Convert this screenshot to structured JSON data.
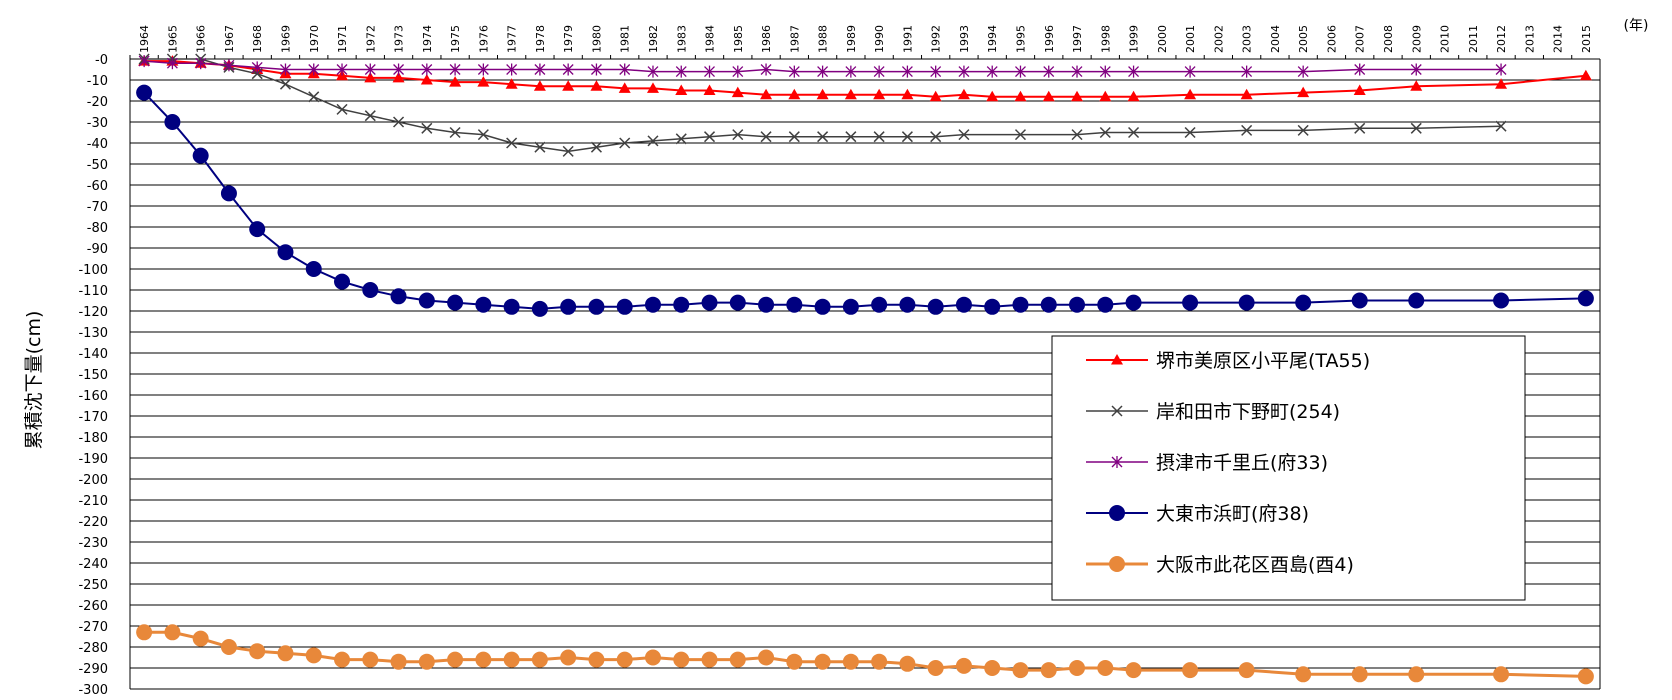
{
  "chart_data": {
    "type": "line",
    "ylabel": "累積沈下量(cm)",
    "x_unit": "(年)",
    "ylim": [
      -300,
      0
    ],
    "y_tick_step": 10,
    "grid": true,
    "legend_position": "right",
    "categories": [
      "1964",
      "1965",
      "1966",
      "1967",
      "1968",
      "1969",
      "1970",
      "1971",
      "1972",
      "1973",
      "1974",
      "1975",
      "1976",
      "1977",
      "1978",
      "1979",
      "1980",
      "1981",
      "1982",
      "1983",
      "1984",
      "1985",
      "1986",
      "1987",
      "1988",
      "1989",
      "1990",
      "1991",
      "1992",
      "1993",
      "1994",
      "1995",
      "1996",
      "1997",
      "1998",
      "1999",
      "2000",
      "2001",
      "2002",
      "2003",
      "2004",
      "2005",
      "2006",
      "2007",
      "2008",
      "2009",
      "2010",
      "2011",
      "2012",
      "2013",
      "2014",
      "2015"
    ],
    "y_tick_labels": [
      "-0",
      "-10",
      "-20",
      "-30",
      "-40",
      "-50",
      "-60",
      "-70",
      "-80",
      "-90",
      "-100",
      "-110",
      "-120",
      "-130",
      "-140",
      "-150",
      "-160",
      "-170",
      "-180",
      "-190",
      "-200",
      "-210",
      "-220",
      "-230",
      "-240",
      "-250",
      "-260",
      "-270",
      "-280",
      "-290",
      "-300"
    ],
    "series": [
      {
        "name": "堺市美原区小平尾(TA55)",
        "color": "#ff0000",
        "marker": "triangle",
        "points": [
          [
            1964,
            -1
          ],
          [
            1965,
            -1
          ],
          [
            1966,
            -2
          ],
          [
            1967,
            -3
          ],
          [
            1968,
            -5
          ],
          [
            1969,
            -7
          ],
          [
            1970,
            -7
          ],
          [
            1971,
            -8
          ],
          [
            1972,
            -9
          ],
          [
            1973,
            -9
          ],
          [
            1974,
            -10
          ],
          [
            1975,
            -11
          ],
          [
            1976,
            -11
          ],
          [
            1977,
            -12
          ],
          [
            1978,
            -13
          ],
          [
            1979,
            -13
          ],
          [
            1980,
            -13
          ],
          [
            1981,
            -14
          ],
          [
            1982,
            -14
          ],
          [
            1983,
            -15
          ],
          [
            1984,
            -15
          ],
          [
            1985,
            -16
          ],
          [
            1986,
            -17
          ],
          [
            1987,
            -17
          ],
          [
            1988,
            -17
          ],
          [
            1989,
            -17
          ],
          [
            1990,
            -17
          ],
          [
            1991,
            -17
          ],
          [
            1992,
            -18
          ],
          [
            1993,
            -17
          ],
          [
            1994,
            -18
          ],
          [
            1995,
            -18
          ],
          [
            1996,
            -18
          ],
          [
            1997,
            -18
          ],
          [
            1998,
            -18
          ],
          [
            1999,
            -18
          ],
          [
            2001,
            -17
          ],
          [
            2003,
            -17
          ],
          [
            2005,
            -16
          ],
          [
            2007,
            -15
          ],
          [
            2009,
            -13
          ],
          [
            2012,
            -12
          ],
          [
            2015,
            -8
          ]
        ]
      },
      {
        "name": "岸和田市下野町(254)",
        "color": "#404040",
        "marker": "x",
        "points": [
          [
            1964,
            0
          ],
          [
            1965,
            0
          ],
          [
            1966,
            0
          ],
          [
            1967,
            -4
          ],
          [
            1968,
            -7
          ],
          [
            1969,
            -12
          ],
          [
            1970,
            -18
          ],
          [
            1971,
            -24
          ],
          [
            1972,
            -27
          ],
          [
            1973,
            -30
          ],
          [
            1974,
            -33
          ],
          [
            1975,
            -35
          ],
          [
            1976,
            -36
          ],
          [
            1977,
            -40
          ],
          [
            1978,
            -42
          ],
          [
            1979,
            -44
          ],
          [
            1980,
            -42
          ],
          [
            1981,
            -40
          ],
          [
            1982,
            -39
          ],
          [
            1983,
            -38
          ],
          [
            1984,
            -37
          ],
          [
            1985,
            -36
          ],
          [
            1986,
            -37
          ],
          [
            1987,
            -37
          ],
          [
            1988,
            -37
          ],
          [
            1989,
            -37
          ],
          [
            1990,
            -37
          ],
          [
            1991,
            -37
          ],
          [
            1992,
            -37
          ],
          [
            1993,
            -36
          ],
          [
            1995,
            -36
          ],
          [
            1997,
            -36
          ],
          [
            1998,
            -35
          ],
          [
            1999,
            -35
          ],
          [
            2001,
            -35
          ],
          [
            2003,
            -34
          ],
          [
            2005,
            -34
          ],
          [
            2007,
            -33
          ],
          [
            2009,
            -33
          ],
          [
            2012,
            -32
          ]
        ]
      },
      {
        "name": "摂津市千里丘(府33)",
        "color": "#800080",
        "marker": "star",
        "points": [
          [
            1964,
            -1
          ],
          [
            1965,
            -2
          ],
          [
            1966,
            -2
          ],
          [
            1967,
            -3
          ],
          [
            1968,
            -4
          ],
          [
            1969,
            -5
          ],
          [
            1970,
            -5
          ],
          [
            1971,
            -5
          ],
          [
            1972,
            -5
          ],
          [
            1973,
            -5
          ],
          [
            1974,
            -5
          ],
          [
            1975,
            -5
          ],
          [
            1976,
            -5
          ],
          [
            1977,
            -5
          ],
          [
            1978,
            -5
          ],
          [
            1979,
            -5
          ],
          [
            1980,
            -5
          ],
          [
            1981,
            -5
          ],
          [
            1982,
            -6
          ],
          [
            1983,
            -6
          ],
          [
            1984,
            -6
          ],
          [
            1985,
            -6
          ],
          [
            1986,
            -5
          ],
          [
            1987,
            -6
          ],
          [
            1988,
            -6
          ],
          [
            1989,
            -6
          ],
          [
            1990,
            -6
          ],
          [
            1991,
            -6
          ],
          [
            1992,
            -6
          ],
          [
            1993,
            -6
          ],
          [
            1994,
            -6
          ],
          [
            1995,
            -6
          ],
          [
            1996,
            -6
          ],
          [
            1997,
            -6
          ],
          [
            1998,
            -6
          ],
          [
            1999,
            -6
          ],
          [
            2001,
            -6
          ],
          [
            2003,
            -6
          ],
          [
            2005,
            -6
          ],
          [
            2007,
            -5
          ],
          [
            2009,
            -5
          ],
          [
            2012,
            -5
          ]
        ]
      },
      {
        "name": "大東市浜町(府38)",
        "color": "#000080",
        "marker": "circle",
        "points": [
          [
            1964,
            -16
          ],
          [
            1965,
            -30
          ],
          [
            1966,
            -46
          ],
          [
            1967,
            -64
          ],
          [
            1968,
            -81
          ],
          [
            1969,
            -92
          ],
          [
            1970,
            -100
          ],
          [
            1971,
            -106
          ],
          [
            1972,
            -110
          ],
          [
            1973,
            -113
          ],
          [
            1974,
            -115
          ],
          [
            1975,
            -116
          ],
          [
            1976,
            -117
          ],
          [
            1977,
            -118
          ],
          [
            1978,
            -119
          ],
          [
            1979,
            -118
          ],
          [
            1980,
            -118
          ],
          [
            1981,
            -118
          ],
          [
            1982,
            -117
          ],
          [
            1983,
            -117
          ],
          [
            1984,
            -116
          ],
          [
            1985,
            -116
          ],
          [
            1986,
            -117
          ],
          [
            1987,
            -117
          ],
          [
            1988,
            -118
          ],
          [
            1989,
            -118
          ],
          [
            1990,
            -117
          ],
          [
            1991,
            -117
          ],
          [
            1992,
            -118
          ],
          [
            1993,
            -117
          ],
          [
            1994,
            -118
          ],
          [
            1995,
            -117
          ],
          [
            1996,
            -117
          ],
          [
            1997,
            -117
          ],
          [
            1998,
            -117
          ],
          [
            1999,
            -116
          ],
          [
            2001,
            -116
          ],
          [
            2003,
            -116
          ],
          [
            2005,
            -116
          ],
          [
            2007,
            -115
          ],
          [
            2009,
            -115
          ],
          [
            2012,
            -115
          ],
          [
            2015,
            -114
          ]
        ]
      },
      {
        "name": "大阪市此花区酉島(酉4)",
        "color": "#e8883a",
        "marker": "circle",
        "points": [
          [
            1964,
            -273
          ],
          [
            1965,
            -273
          ],
          [
            1966,
            -276
          ],
          [
            1967,
            -280
          ],
          [
            1968,
            -282
          ],
          [
            1969,
            -283
          ],
          [
            1970,
            -284
          ],
          [
            1971,
            -286
          ],
          [
            1972,
            -286
          ],
          [
            1973,
            -287
          ],
          [
            1974,
            -287
          ],
          [
            1975,
            -286
          ],
          [
            1976,
            -286
          ],
          [
            1977,
            -286
          ],
          [
            1978,
            -286
          ],
          [
            1979,
            -285
          ],
          [
            1980,
            -286
          ],
          [
            1981,
            -286
          ],
          [
            1982,
            -285
          ],
          [
            1983,
            -286
          ],
          [
            1984,
            -286
          ],
          [
            1985,
            -286
          ],
          [
            1986,
            -285
          ],
          [
            1987,
            -287
          ],
          [
            1988,
            -287
          ],
          [
            1989,
            -287
          ],
          [
            1990,
            -287
          ],
          [
            1991,
            -288
          ],
          [
            1992,
            -290
          ],
          [
            1993,
            -289
          ],
          [
            1994,
            -290
          ],
          [
            1995,
            -291
          ],
          [
            1996,
            -291
          ],
          [
            1997,
            -290
          ],
          [
            1998,
            -290
          ],
          [
            1999,
            -291
          ],
          [
            2001,
            -291
          ],
          [
            2003,
            -291
          ],
          [
            2005,
            -293
          ],
          [
            2007,
            -293
          ],
          [
            2009,
            -293
          ],
          [
            2012,
            -293
          ],
          [
            2015,
            -294
          ]
        ]
      }
    ]
  }
}
